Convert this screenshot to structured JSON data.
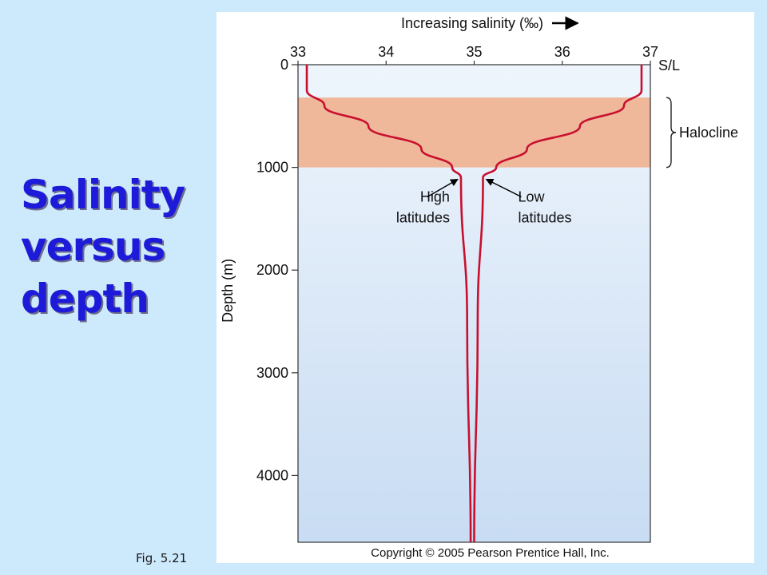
{
  "slide": {
    "title_lines": [
      "Salinity",
      "versus",
      "depth"
    ],
    "figure_caption": "Fig. 5.21",
    "copyright": "Copyright © 2005 Pearson Prentice Hall, Inc."
  },
  "chart_data": {
    "type": "line",
    "title": "",
    "xlabel": "Increasing salinity (‰)",
    "ylabel": "Depth (m)",
    "x_axis_position": "top",
    "xlim": [
      33,
      37
    ],
    "ylim": [
      4650,
      0
    ],
    "x_ticks": [
      33,
      34,
      35,
      36,
      37
    ],
    "y_ticks": [
      0,
      1000,
      2000,
      3000,
      4000
    ],
    "surface_label": "S/L",
    "grid": false,
    "legend": "none",
    "colors": {
      "line": "#c8102e",
      "band": "#f0b89a",
      "plot_top": "#eef5fc",
      "plot_bottom": "#c8dcf3",
      "arrow": "#000000"
    },
    "bands": [
      {
        "label": "Halocline",
        "y_range": [
          320,
          1000
        ]
      }
    ],
    "series": [
      {
        "annotation": "High latitudes",
        "points": [
          [
            33.1,
            0
          ],
          [
            33.1,
            250
          ],
          [
            33.3,
            400
          ],
          [
            33.8,
            600
          ],
          [
            34.4,
            820
          ],
          [
            34.75,
            1000
          ],
          [
            34.85,
            1100
          ],
          [
            34.92,
            2500
          ],
          [
            34.96,
            4650
          ]
        ]
      },
      {
        "annotation": "Low latitudes",
        "points": [
          [
            36.9,
            0
          ],
          [
            36.9,
            250
          ],
          [
            36.7,
            400
          ],
          [
            36.2,
            600
          ],
          [
            35.6,
            820
          ],
          [
            35.25,
            1000
          ],
          [
            35.1,
            1100
          ],
          [
            35.04,
            2500
          ],
          [
            35.0,
            4650
          ]
        ]
      }
    ],
    "annotations": [
      {
        "lines": [
          "High",
          "latitudes"
        ],
        "points_to": [
          34.85,
          1100
        ],
        "text_side": "left"
      },
      {
        "lines": [
          "Low",
          "latitudes"
        ],
        "points_to": [
          35.1,
          1100
        ],
        "text_side": "right"
      }
    ]
  }
}
